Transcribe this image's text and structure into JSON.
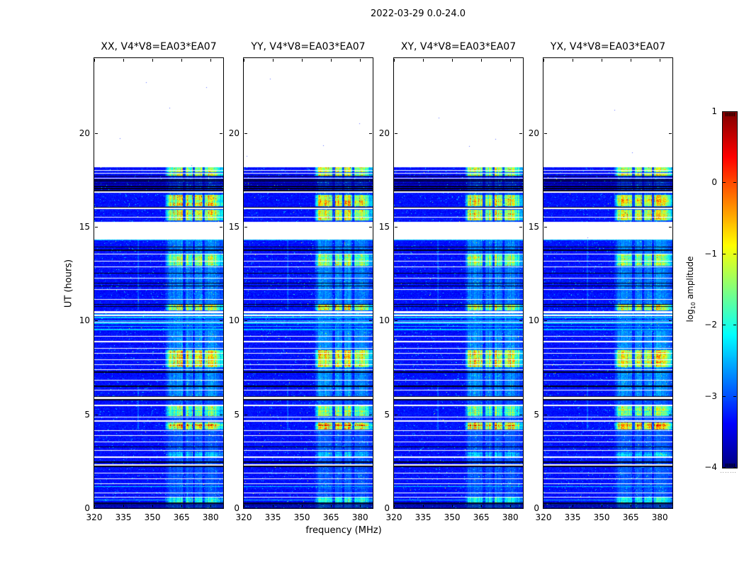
{
  "figure": {
    "suptitle": "2022-03-29 0.0-24.0",
    "background": "#ffffff"
  },
  "axes": {
    "xlabel": "frequency (MHz)",
    "ylabel": "UT (hours)",
    "x_ticks": [
      "320",
      "335",
      "350",
      "365",
      "380"
    ],
    "y_ticks": [
      "0",
      "5",
      "10",
      "15",
      "20"
    ]
  },
  "colorbar": {
    "label": {
      "prefix": "log",
      "sub": "10",
      "suffix": " amplitude"
    },
    "ticks": [
      "1",
      "0",
      "−1",
      "−2",
      "−3",
      "−4"
    ],
    "vmin": -4,
    "vmax": 1,
    "cmap": "jet"
  },
  "chart_data": {
    "type": "heatmap",
    "title": "2022-03-29 0.0-24.0",
    "xlabel": "frequency (MHz)",
    "ylabel": "UT (hours)",
    "value_label": "log10 amplitude",
    "value_range": [
      -4,
      1
    ],
    "x_range_mhz": [
      320,
      386.5
    ],
    "y_range_hours": [
      0,
      24
    ],
    "x_tick_values": [
      320,
      335,
      350,
      365,
      380
    ],
    "y_tick_values": [
      0,
      5,
      10,
      15,
      20
    ],
    "panels": [
      {
        "pol": "XX",
        "title": "XX, V4*V8=EA03*EA07"
      },
      {
        "pol": "YY",
        "title": "YY, V4*V8=EA03*EA07"
      },
      {
        "pol": "XY",
        "title": "XY, V4*V8=EA03*EA07"
      },
      {
        "pol": "YX",
        "title": "YX, V4*V8=EA03*EA07"
      }
    ],
    "baseline": "V4*V8=EA03*EA07",
    "background_level": -3.4,
    "no_data_above_hour": 18.2,
    "rfi_band_mhz": [
      357,
      383.5
    ],
    "rfi_band_gap_channels_mhz": [
      366.2,
      371.2,
      376.2
    ],
    "white_gaps_hours": [
      [
        18.2,
        24.0
      ],
      [
        18.02,
        18.06
      ],
      [
        17.86,
        17.9
      ],
      [
        17.6,
        17.64
      ],
      [
        16.82,
        16.92
      ],
      [
        15.95,
        16.03
      ],
      [
        15.53,
        15.57
      ],
      [
        14.33,
        15.28
      ],
      [
        13.55,
        13.6
      ],
      [
        13.18,
        13.22
      ],
      [
        12.86,
        12.92
      ],
      [
        12.25,
        12.3
      ],
      [
        11.66,
        11.71
      ],
      [
        11.12,
        11.17
      ],
      [
        10.43,
        10.53
      ],
      [
        10.28,
        10.32
      ],
      [
        9.92,
        9.95
      ],
      [
        9.18,
        9.22
      ],
      [
        8.88,
        8.92
      ],
      [
        8.52,
        8.56
      ],
      [
        8.27,
        8.31
      ],
      [
        7.92,
        7.96
      ],
      [
        7.67,
        7.71
      ],
      [
        7.38,
        7.42
      ],
      [
        6.83,
        6.87
      ],
      [
        6.28,
        6.32
      ],
      [
        5.84,
        5.94
      ],
      [
        5.48,
        5.52
      ],
      [
        4.86,
        4.9
      ],
      [
        4.62,
        4.7
      ],
      [
        4.12,
        4.18
      ],
      [
        3.88,
        3.92
      ],
      [
        3.52,
        3.56
      ],
      [
        3.08,
        3.12
      ],
      [
        2.72,
        2.76
      ],
      [
        2.28,
        2.36
      ],
      [
        1.88,
        1.92
      ],
      [
        1.58,
        1.62
      ],
      [
        1.3,
        1.34
      ],
      [
        0.82,
        0.86
      ],
      [
        0.58,
        0.62
      ]
    ],
    "black_lines_hours": [
      17.72,
      17.52,
      17.42,
      17.3,
      17.18,
      17.06,
      16.95,
      16.06,
      13.95,
      13.78,
      12.55,
      12.02,
      11.86,
      10.88,
      10.78,
      7.28,
      6.52,
      5.96,
      5.8,
      3.28,
      2.48,
      2.25,
      0.28,
      0.18,
      0.08
    ],
    "cyan_stripes_hours": [
      10.35,
      10.18,
      10.02,
      9.88,
      9.72,
      9.55,
      14.35,
      1.18,
      0.45
    ],
    "rfi_blobs": [
      {
        "t0": 17.93,
        "t1": 18.18,
        "strength": 1.9
      },
      {
        "t0": 17.7,
        "t1": 17.9,
        "strength": 2.1
      },
      {
        "t0": 16.12,
        "t1": 16.72,
        "strength": 2.2
      },
      {
        "t0": 15.35,
        "t1": 15.93,
        "strength": 2.1
      },
      {
        "t0": 12.95,
        "t1": 13.55,
        "strength": 1.8
      },
      {
        "t0": 10.55,
        "t1": 10.9,
        "strength": 2.0
      },
      {
        "t0": 7.55,
        "t1": 8.45,
        "strength": 2.2
      },
      {
        "t0": 4.95,
        "t1": 5.45,
        "strength": 1.7
      },
      {
        "t0": 4.22,
        "t1": 4.6,
        "strength": 2.2
      },
      {
        "t0": 2.78,
        "t1": 3.02,
        "strength": 0.9
      },
      {
        "t0": 0.32,
        "t1": 0.6,
        "strength": 1.2
      }
    ],
    "hot_rows": [
      {
        "t0": 4.42,
        "t1": 4.48,
        "extra": 0.8
      }
    ],
    "faint_band_activity": [
      [
        10.9,
        14.33,
        0.55
      ],
      [
        5.95,
        9.45,
        0.6
      ],
      [
        0.0,
        24.0,
        0.35
      ]
    ],
    "dim_row_ranges": [
      [
        16.9,
        17.7,
        0.15
      ]
    ],
    "vertical_line_features": [
      {
        "f_mhz": 342.5,
        "t0": 10.6,
        "t1": 14.3,
        "strength": 0.5
      },
      {
        "f_mhz": 342.5,
        "t0": 4.2,
        "t1": 6.6,
        "strength": 0.55
      }
    ]
  }
}
